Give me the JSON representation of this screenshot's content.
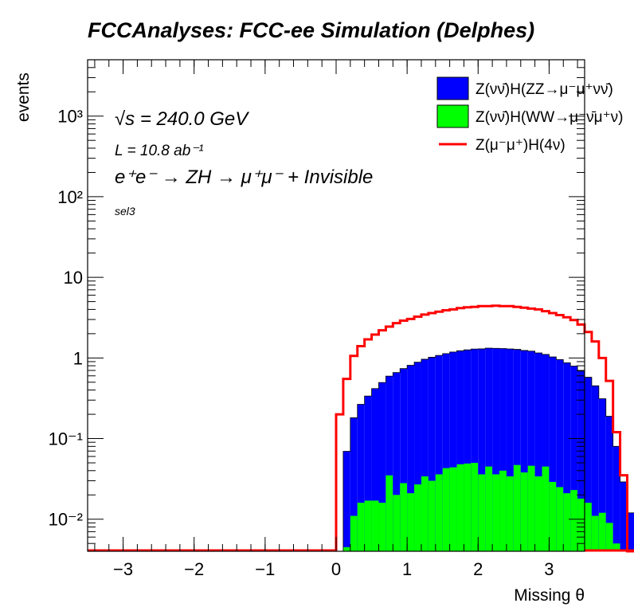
{
  "chart_data": {
    "type": "bar",
    "title": "FCCAnalyses: FCC-ee Simulation (Delphes)",
    "xlabel": "Missing θ",
    "ylabel": "events",
    "xlim": [
      -3.5,
      3.5
    ],
    "ylim": [
      0.004,
      5000
    ],
    "log_y": true,
    "grid": false,
    "legend_position": "top-right",
    "annotations": {
      "sqrt_s": "√s = 240.0 GeV",
      "lumi": "L = 10.8 ab⁻¹",
      "process": "e⁺e⁻ → ZH → μ⁺μ⁻ + Invisible",
      "selection": "sel3"
    },
    "x_ticks": [
      -3,
      -2,
      -1,
      0,
      1,
      2,
      3
    ],
    "x_tick_labels": [
      "−3",
      "−2",
      "−1",
      "0",
      "1",
      "2",
      "3"
    ],
    "y_ticks": [
      0.01,
      0.1,
      1,
      10,
      100,
      1000
    ],
    "y_tick_labels": [
      "10⁻²",
      "10⁻¹",
      "1",
      "10",
      "10²",
      "10³"
    ],
    "bin_edges_start": 0.0,
    "bin_width": 0.1,
    "stack_floor": 0.004,
    "series": [
      {
        "name": "Z(νν̄)H(WW→μ⁻ν̄μ⁺ν)",
        "kind": "stacked-fill",
        "color": "#00ff00",
        "values": [
          0,
          0.0045,
          0.011,
          0.016,
          0.017,
          0.017,
          0.016,
          0.035,
          0.02,
          0.028,
          0.021,
          0.027,
          0.034,
          0.03,
          0.036,
          0.043,
          0.044,
          0.048,
          0.049,
          0.05,
          0.036,
          0.045,
          0.036,
          0.04,
          0.034,
          0.047,
          0.038,
          0.046,
          0.034,
          0.045,
          0.029,
          0.025,
          0.021,
          0.023,
          0.018,
          0.016,
          0.011,
          0.012,
          0.009,
          0.005,
          0.004,
          0.004
        ]
      },
      {
        "name": "Z(νν̄)H(ZZ→μ⁻μ⁺νν̄)",
        "kind": "stacked-fill",
        "color": "#0000ff",
        "values": [
          0,
          0.065,
          0.17,
          0.25,
          0.32,
          0.4,
          0.48,
          0.56,
          0.64,
          0.71,
          0.79,
          0.86,
          0.93,
          0.99,
          1.04,
          1.09,
          1.14,
          1.18,
          1.21,
          1.24,
          1.26,
          1.28,
          1.28,
          1.27,
          1.26,
          1.23,
          1.2,
          1.17,
          1.12,
          1.06,
          1.0,
          0.93,
          0.85,
          0.77,
          0.67,
          0.56,
          0.44,
          0.3,
          0.18,
          0.075,
          0.025,
          0.008
        ]
      },
      {
        "name": "Z(μ⁻μ⁺)H(4ν)",
        "kind": "line",
        "color": "#ff0000",
        "values": [
          0.2,
          0.55,
          1.06,
          1.4,
          1.7,
          1.95,
          2.2,
          2.45,
          2.7,
          2.9,
          3.05,
          3.25,
          3.45,
          3.6,
          3.75,
          3.9,
          4.0,
          4.15,
          4.25,
          4.3,
          4.4,
          4.4,
          4.45,
          4.4,
          4.4,
          4.3,
          4.2,
          4.1,
          4.0,
          3.8,
          3.6,
          3.4,
          3.2,
          2.95,
          2.6,
          2.1,
          1.6,
          1.0,
          0.52,
          0.12,
          0.035,
          0.004
        ]
      }
    ],
    "legend_order": [
      1,
      0,
      2
    ]
  }
}
